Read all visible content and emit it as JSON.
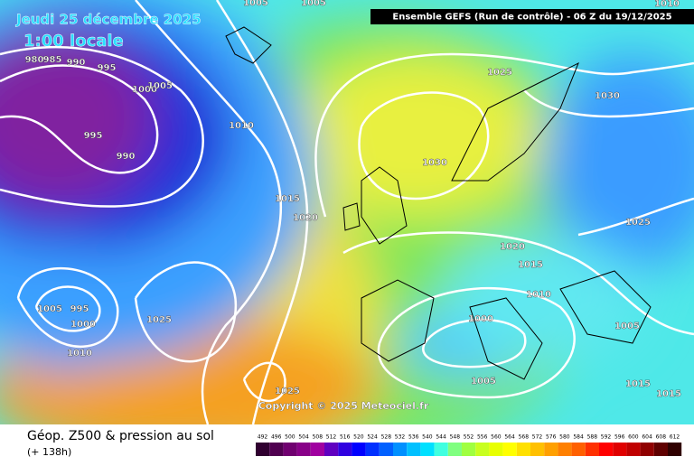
{
  "header": {
    "date": "Jeudi 25 décembre 2025",
    "time": "1:00 locale",
    "run": "Ensemble GEFS  (Run de contrôle)  -  06 Z du 19/12/2025"
  },
  "map": {
    "isobar_labels": [
      "1005",
      "1005",
      "980",
      "985",
      "990",
      "995",
      "1000",
      "1005",
      "1010",
      "995",
      "990",
      "1015",
      "1020",
      "1025",
      "1030",
      "1030",
      "1025",
      "1020",
      "1015",
      "1010",
      "1000",
      "1005",
      "1005",
      "995",
      "1000",
      "1010",
      "1025",
      "1025",
      "1005",
      "1015",
      "1015",
      "1010"
    ],
    "copyright": "Copyright © 2025 Meteociel.fr"
  },
  "footer": {
    "title": "Géop. Z500 & pression au sol",
    "subtitle": "(+ 138h)",
    "scale": [
      "492",
      "496",
      "500",
      "504",
      "508",
      "512",
      "516",
      "520",
      "524",
      "528",
      "532",
      "536",
      "540",
      "544",
      "548",
      "552",
      "556",
      "560",
      "564",
      "568",
      "572",
      "576",
      "580",
      "584",
      "588",
      "592",
      "596",
      "600",
      "604",
      "608",
      "612"
    ]
  }
}
